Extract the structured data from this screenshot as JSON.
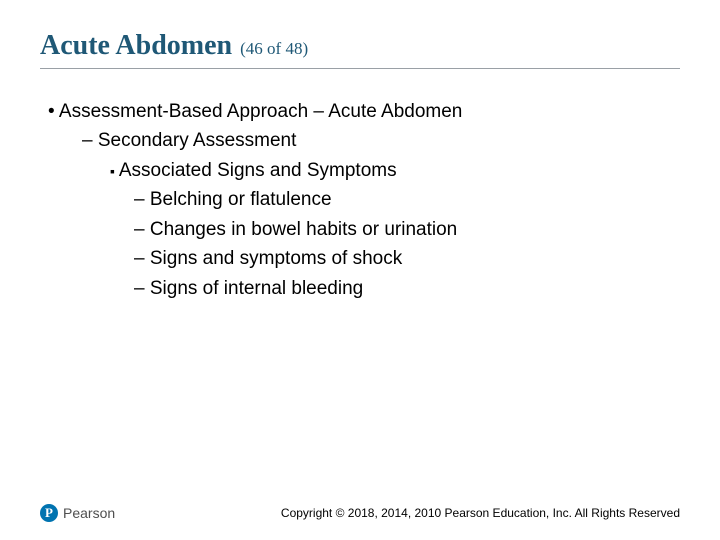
{
  "title": {
    "main": "Acute Abdomen",
    "sub": "(46 of 48)",
    "main_color": "#1f5876",
    "main_fontsize": 28,
    "sub_fontsize": 17
  },
  "divider_color": "#9aa0a6",
  "content": {
    "fontsize": 19,
    "text_color": "#000000",
    "lines": [
      {
        "level": 1,
        "text": "Assessment-Based Approach – Acute Abdomen"
      },
      {
        "level": 2,
        "text": "Secondary Assessment"
      },
      {
        "level": 3,
        "text": "Associated Signs and Symptoms"
      },
      {
        "level": 4,
        "text": "Belching or flatulence"
      },
      {
        "level": 4,
        "text": "Changes in bowel habits or urination"
      },
      {
        "level": 4,
        "text": "Signs and symptoms of shock"
      },
      {
        "level": 4,
        "text": "Signs of internal bleeding"
      }
    ]
  },
  "footer": {
    "logo_letter": "P",
    "logo_text": "Pearson",
    "logo_bg": "#0073b0",
    "copyright": "Copyright © 2018, 2014, 2010 Pearson Education, Inc. All Rights Reserved"
  }
}
